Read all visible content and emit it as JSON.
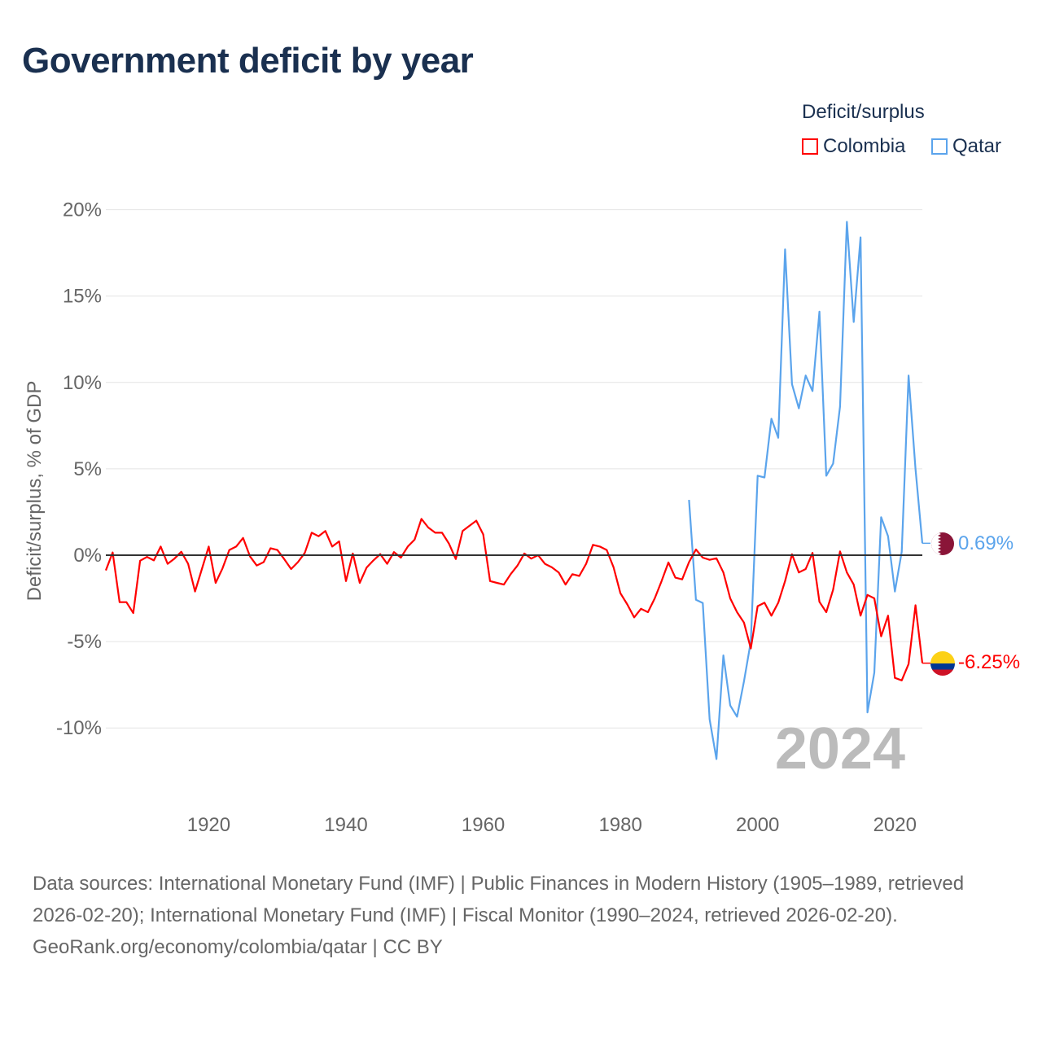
{
  "title": "Government deficit by year",
  "chart_data": {
    "type": "line",
    "title": "Government deficit by year",
    "xlabel": "",
    "ylabel": "Deficit/surplus, % of GDP",
    "xlim": [
      1905,
      2024
    ],
    "ylim": [
      -12,
      20
    ],
    "y_ticks": [
      20,
      15,
      10,
      5,
      0,
      -5,
      -10
    ],
    "y_tick_labels": [
      "20%",
      "15%",
      "10%",
      "5%",
      "0%",
      "-5%",
      "-10%"
    ],
    "x_ticks": [
      1920,
      1940,
      1960,
      1980,
      2000,
      2020
    ],
    "x_tick_labels": [
      "1920",
      "1940",
      "1960",
      "1980",
      "2000",
      "2020"
    ],
    "grid": true,
    "legend_title": "Deficit/surplus",
    "legend_position": "top-right",
    "year_annotation": "2024",
    "series": [
      {
        "name": "Colombia",
        "color": "#ff0000",
        "end_label": "-6.25%",
        "x_start": 1905,
        "values": [
          -0.88,
          0.16,
          -2.72,
          -2.72,
          -3.35,
          -0.32,
          -0.1,
          -0.3,
          0.5,
          -0.5,
          -0.2,
          0.2,
          -0.5,
          -2.1,
          -0.8,
          0.5,
          -1.6,
          -0.77,
          0.3,
          0.5,
          1.0,
          -0.06,
          -0.6,
          -0.4,
          0.4,
          0.3,
          -0.22,
          -0.8,
          -0.4,
          0.13,
          1.3,
          1.1,
          1.4,
          0.5,
          0.8,
          -1.5,
          0.1,
          -1.6,
          -0.72,
          -0.3,
          0.06,
          -0.5,
          0.18,
          -0.14,
          0.5,
          0.9,
          2.1,
          1.6,
          1.3,
          1.3,
          0.68,
          -0.22,
          1.4,
          1.7,
          2.0,
          1.2,
          -1.5,
          -1.6,
          -1.7,
          -1.1,
          -0.6,
          0.1,
          -0.2,
          0.0,
          -0.5,
          -0.7,
          -1.0,
          -1.7,
          -1.1,
          -1.2,
          -0.5,
          0.6,
          0.5,
          0.3,
          -0.7,
          -2.2,
          -2.85,
          -3.6,
          -3.1,
          -3.3,
          -2.5,
          -1.5,
          -0.42,
          -1.3,
          -1.4,
          -0.4,
          0.33,
          -0.14,
          -0.27,
          -0.18,
          -1.0,
          -2.5,
          -3.3,
          -3.9,
          -5.4,
          -2.95,
          -2.75,
          -3.5,
          -2.75,
          -1.5,
          0.05,
          -1.0,
          -0.8,
          0.13,
          -2.7,
          -3.3,
          -2.0,
          0.22,
          -1.0,
          -1.7,
          -3.5,
          -2.3,
          -2.5,
          -4.7,
          -3.5,
          -7.1,
          -7.25,
          -6.3,
          -2.9,
          -6.25
        ]
      },
      {
        "name": "Qatar",
        "color": "#5ba4ec",
        "end_label": "0.69%",
        "x_start": 1990,
        "values": [
          3.2,
          -2.58,
          -2.77,
          -9.5,
          -11.8,
          -5.8,
          -8.7,
          -9.35,
          -7.3,
          -5.0,
          4.6,
          4.5,
          7.9,
          6.8,
          17.7,
          9.9,
          8.5,
          10.4,
          9.5,
          14.1,
          4.6,
          5.3,
          8.6,
          19.3,
          13.5,
          18.4,
          -9.1,
          -6.8,
          2.2,
          1.1,
          -2.1,
          0.2,
          10.4,
          5.0,
          0.69
        ]
      }
    ]
  },
  "footer": {
    "sources": "Data sources: International Monetary Fund (IMF) | Public Finances in Modern History (1905–1989, retrieved 2026-02-20); International Monetary Fund (IMF) | Fiscal Monitor (1990–2024, retrieved 2026-02-20).",
    "credit": "GeoRank.org/economy/colombia/qatar | CC BY"
  }
}
